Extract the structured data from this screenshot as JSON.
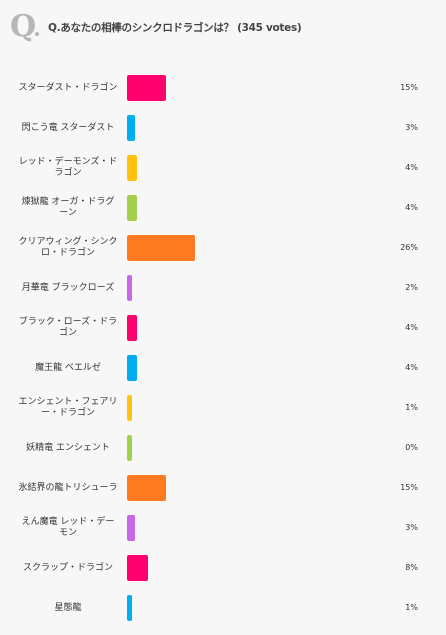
{
  "header": {
    "q_mark": "Q",
    "title": "Q.あなたの相棒のシンクロドラゴンは？ (345 votes)"
  },
  "chart_data": {
    "type": "bar",
    "orientation": "horizontal",
    "title": "Q.あなたの相棒のシンクロドラゴンは？ (345 votes)",
    "total_votes": 345,
    "unit": "%",
    "categories": [
      "スターダスト・ドラゴン",
      "閃こう竜 スターダスト",
      "レッド・デーモンズ・ドラゴン",
      "煉獄龍 オーガ・ドラグーン",
      "クリアウィング・シンクロ・ドラゴン",
      "月華竜 ブラックローズ",
      "ブラック・ローズ・ドラゴン",
      "魔王龍 ベエルゼ",
      "エンシェント・フェアリー・ドラゴン",
      "妖精竜 エンシェント",
      "氷結界の龍トリシューラ",
      "えん魔竜 レッド・デーモン",
      "スクラップ・ドラゴン",
      "星態龍"
    ],
    "values": [
      15,
      3,
      4,
      4,
      26,
      2,
      4,
      4,
      1,
      0,
      15,
      3,
      8,
      1
    ],
    "value_labels": [
      "15%",
      "3%",
      "4%",
      "4%",
      "26%",
      "2%",
      "4%",
      "4%",
      "1%",
      "0%",
      "15%",
      "3%",
      "8%",
      "1%"
    ],
    "colors": [
      "#ff006e",
      "#00adef",
      "#ffc20e",
      "#a2d04a",
      "#ff7a21",
      "#c668e8",
      "#ff006e",
      "#00adef",
      "#ffc20e",
      "#a2d04a",
      "#ff7a21",
      "#c668e8",
      "#ff006e",
      "#00adef"
    ],
    "xlim": [
      0,
      26
    ],
    "grid": false,
    "legend": "none"
  }
}
